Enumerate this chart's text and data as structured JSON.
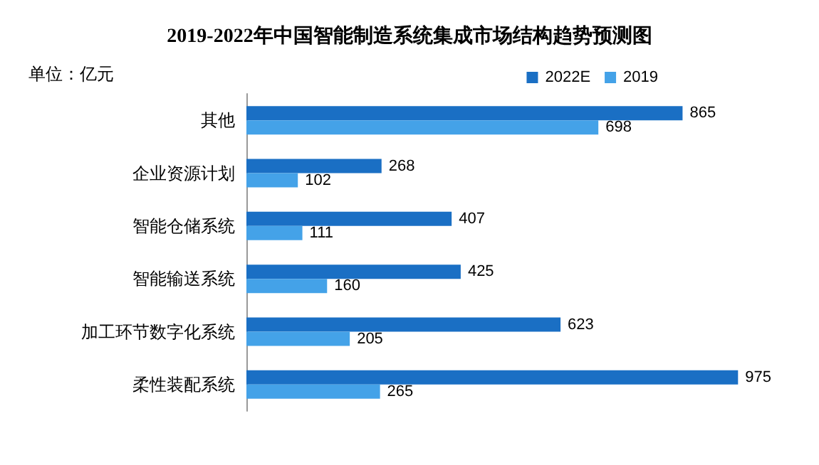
{
  "chart_data": {
    "type": "bar",
    "orientation": "horizontal",
    "title": "2019-2022年中国智能制造系统集成市场结构趋势预测图",
    "annotations": [
      "单位：亿元"
    ],
    "categories": [
      "其他",
      "企业资源计划",
      "智能仓储系统",
      "智能输送系统",
      "加工环节数字化系统",
      "柔性装配系统"
    ],
    "series": [
      {
        "name": "2022E",
        "color": "#1a6fc4",
        "values": [
          865,
          268,
          407,
          425,
          623,
          975
        ]
      },
      {
        "name": "2019",
        "color": "#44a2e8",
        "values": [
          698,
          102,
          111,
          160,
          205,
          265
        ]
      }
    ],
    "data_labels": true,
    "legend": "top right"
  }
}
